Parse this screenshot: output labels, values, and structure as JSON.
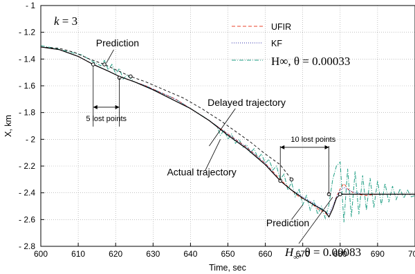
{
  "chart_data": {
    "type": "line",
    "xlabel": "Time, sec",
    "ylabel": "X, km",
    "xlim": [
      600,
      700
    ],
    "ylim": [
      -2.8,
      -1.0
    ],
    "x_ticks": [
      "600",
      "610",
      "620",
      "630",
      "640",
      "650",
      "660",
      "670",
      "680",
      "690",
      "700"
    ],
    "y_ticks": [
      "- 1",
      "- 1.2",
      "- 1.4",
      "- 1.6",
      "- 1.8",
      "- 2",
      "- 2.2",
      "- 2.4",
      "- 2.6",
      "- 2.8"
    ],
    "grid": true,
    "legend_position": "top-right",
    "top_label": {
      "var": "k",
      "eq": " = 3"
    },
    "series": [
      {
        "name": "UFIR",
        "color": "#e8402a",
        "style": "dashed",
        "points": [
          [
            600,
            -1.31
          ],
          [
            605,
            -1.33
          ],
          [
            610,
            -1.38
          ],
          [
            614,
            -1.44
          ],
          [
            618,
            -1.49
          ],
          [
            621,
            -1.53
          ],
          [
            624,
            -1.56
          ],
          [
            628,
            -1.6
          ],
          [
            632,
            -1.65
          ],
          [
            636,
            -1.7
          ],
          [
            640,
            -1.77
          ],
          [
            645,
            -1.86
          ],
          [
            650,
            -1.96
          ],
          [
            655,
            -2.06
          ],
          [
            660,
            -2.18
          ],
          [
            664,
            -2.3
          ],
          [
            667,
            -2.38
          ],
          [
            669,
            -2.43
          ],
          [
            672,
            -2.47
          ],
          [
            674,
            -2.52
          ],
          [
            676,
            -2.55
          ],
          [
            677,
            -2.58
          ],
          [
            678,
            -2.52
          ],
          [
            679,
            -2.43
          ],
          [
            680,
            -2.37
          ],
          [
            681,
            -2.33
          ],
          [
            682,
            -2.37
          ],
          [
            684,
            -2.41
          ],
          [
            687,
            -2.42
          ],
          [
            690,
            -2.41
          ],
          [
            700,
            -2.41
          ]
        ]
      },
      {
        "name": "KF",
        "color": "#2a2aa8",
        "style": "dotted",
        "points": [
          [
            600,
            -1.31
          ],
          [
            605,
            -1.33
          ],
          [
            610,
            -1.38
          ],
          [
            614,
            -1.44
          ],
          [
            618,
            -1.49
          ],
          [
            621,
            -1.53
          ],
          [
            624,
            -1.56
          ],
          [
            628,
            -1.6
          ],
          [
            632,
            -1.65
          ],
          [
            636,
            -1.7
          ],
          [
            640,
            -1.77
          ],
          [
            645,
            -1.86
          ],
          [
            650,
            -1.96
          ],
          [
            655,
            -2.06
          ],
          [
            660,
            -2.18
          ],
          [
            664,
            -2.31
          ],
          [
            667,
            -2.38
          ],
          [
            670,
            -2.43
          ],
          [
            673,
            -2.48
          ],
          [
            675,
            -2.52
          ],
          [
            677,
            -2.56
          ],
          [
            678,
            -2.5
          ],
          [
            679,
            -2.43
          ],
          [
            680,
            -2.38
          ],
          [
            681,
            -2.36
          ],
          [
            683,
            -2.39
          ],
          [
            686,
            -2.41
          ],
          [
            690,
            -2.41
          ],
          [
            700,
            -2.41
          ]
        ]
      },
      {
        "name": "H∞, θ = 0.00033",
        "color": "#1e9e83",
        "style": "dashdot",
        "points": [
          [
            600,
            -1.3
          ],
          [
            604,
            -1.32
          ],
          [
            608,
            -1.35
          ],
          [
            611,
            -1.37
          ],
          [
            614,
            -1.42
          ],
          [
            616,
            -1.45
          ],
          [
            617,
            -1.41
          ],
          [
            618,
            -1.48
          ],
          [
            619,
            -1.44
          ],
          [
            620,
            -1.51
          ],
          [
            621,
            -1.47
          ],
          [
            622,
            -1.55
          ],
          [
            623,
            -1.52
          ],
          [
            625,
            -1.57
          ],
          [
            628,
            -1.6
          ],
          [
            632,
            -1.65
          ],
          [
            636,
            -1.7
          ],
          [
            640,
            -1.77
          ],
          [
            644,
            -1.84
          ],
          [
            647,
            -1.9
          ],
          [
            648,
            -1.97
          ],
          [
            649,
            -1.93
          ],
          [
            650,
            -2.0
          ],
          [
            651,
            -1.96
          ],
          [
            652,
            -2.03
          ],
          [
            653,
            -2.0
          ],
          [
            654,
            -2.06
          ],
          [
            655,
            -2.04
          ],
          [
            656,
            -2.1
          ],
          [
            657,
            -2.07
          ],
          [
            658,
            -2.14
          ],
          [
            659,
            -2.11
          ],
          [
            660,
            -2.18
          ],
          [
            661,
            -2.15
          ],
          [
            662,
            -2.23
          ],
          [
            663,
            -2.2
          ],
          [
            664,
            -2.3
          ],
          [
            665,
            -2.26
          ],
          [
            666,
            -2.38
          ],
          [
            667,
            -2.32
          ],
          [
            668,
            -2.43
          ],
          [
            669,
            -2.37
          ],
          [
            670,
            -2.49
          ],
          [
            671,
            -2.42
          ],
          [
            672,
            -2.53
          ],
          [
            673,
            -2.46
          ],
          [
            674,
            -2.56
          ],
          [
            675,
            -2.5
          ],
          [
            676,
            -2.59
          ],
          [
            677,
            -2.49
          ],
          [
            678,
            -2.3
          ],
          [
            679,
            -2.2
          ],
          [
            680,
            -2.17
          ],
          [
            681,
            -2.62
          ],
          [
            682,
            -2.22
          ],
          [
            683,
            -2.58
          ],
          [
            684,
            -2.24
          ],
          [
            685,
            -2.56
          ],
          [
            686,
            -2.27
          ],
          [
            687,
            -2.53
          ],
          [
            688,
            -2.29
          ],
          [
            689,
            -2.51
          ],
          [
            690,
            -2.31
          ],
          [
            691,
            -2.49
          ],
          [
            692,
            -2.33
          ],
          [
            693,
            -2.47
          ],
          [
            694,
            -2.35
          ],
          [
            695,
            -2.45
          ],
          [
            696,
            -2.37
          ],
          [
            697,
            -2.44
          ],
          [
            698,
            -2.38
          ],
          [
            699,
            -2.43
          ],
          [
            700,
            -2.42
          ]
        ]
      },
      {
        "name": "Actual trajectory",
        "color": "#000000",
        "style": "solid",
        "points": [
          [
            600,
            -1.31
          ],
          [
            605,
            -1.33
          ],
          [
            610,
            -1.38
          ],
          [
            614,
            -1.44
          ],
          [
            618,
            -1.49
          ],
          [
            621,
            -1.53
          ],
          [
            625,
            -1.57
          ],
          [
            630,
            -1.63
          ],
          [
            635,
            -1.7
          ],
          [
            640,
            -1.77
          ],
          [
            645,
            -1.86
          ],
          [
            650,
            -1.97
          ],
          [
            655,
            -2.07
          ],
          [
            660,
            -2.19
          ],
          [
            664,
            -2.31
          ],
          [
            667,
            -2.38
          ],
          [
            670,
            -2.44
          ],
          [
            673,
            -2.49
          ],
          [
            676,
            -2.54
          ],
          [
            677,
            -2.58
          ],
          [
            678,
            -2.52
          ],
          [
            679,
            -2.44
          ],
          [
            680,
            -2.41
          ],
          [
            690,
            -2.41
          ],
          [
            700,
            -2.41
          ]
        ]
      },
      {
        "name": "Delayed trajectory",
        "color": "#000000",
        "style": "dashed",
        "points": [
          [
            600,
            -1.31
          ],
          [
            605,
            -1.32
          ],
          [
            609,
            -1.35
          ],
          [
            613,
            -1.4
          ],
          [
            617,
            -1.44
          ],
          [
            620,
            -1.48
          ],
          [
            624,
            -1.53
          ],
          [
            628,
            -1.57
          ],
          [
            633,
            -1.63
          ],
          [
            638,
            -1.69
          ],
          [
            643,
            -1.77
          ],
          [
            648,
            -1.86
          ],
          [
            652,
            -1.94
          ],
          [
            656,
            -2.02
          ],
          [
            660,
            -2.11
          ],
          [
            664,
            -2.19
          ],
          [
            667,
            -2.3
          ]
        ]
      }
    ],
    "markers": [
      [
        614,
        -1.44
      ],
      [
        617,
        -1.44
      ],
      [
        621,
        -1.54
      ],
      [
        624,
        -1.53
      ],
      [
        664,
        -2.31
      ],
      [
        667,
        -2.3
      ],
      [
        677,
        -2.41
      ],
      [
        680,
        -2.41
      ]
    ],
    "annotations": [
      {
        "text": "Prediction",
        "x": 620.5,
        "y": -1.305
      },
      {
        "text": "5 lost points",
        "x": 617.5,
        "y": -1.865
      },
      {
        "text": "Delayed trajectory",
        "x": 655,
        "y": -1.75
      },
      {
        "text": "Actual trajectory",
        "x": 643,
        "y": -2.27
      },
      {
        "text": "10 lost points",
        "x": 672.8,
        "y": -2.02
      },
      {
        "text": "Prediction",
        "x": 666,
        "y": -2.65
      }
    ],
    "label_h2": {
      "theta": "θ = 0.00083"
    }
  }
}
